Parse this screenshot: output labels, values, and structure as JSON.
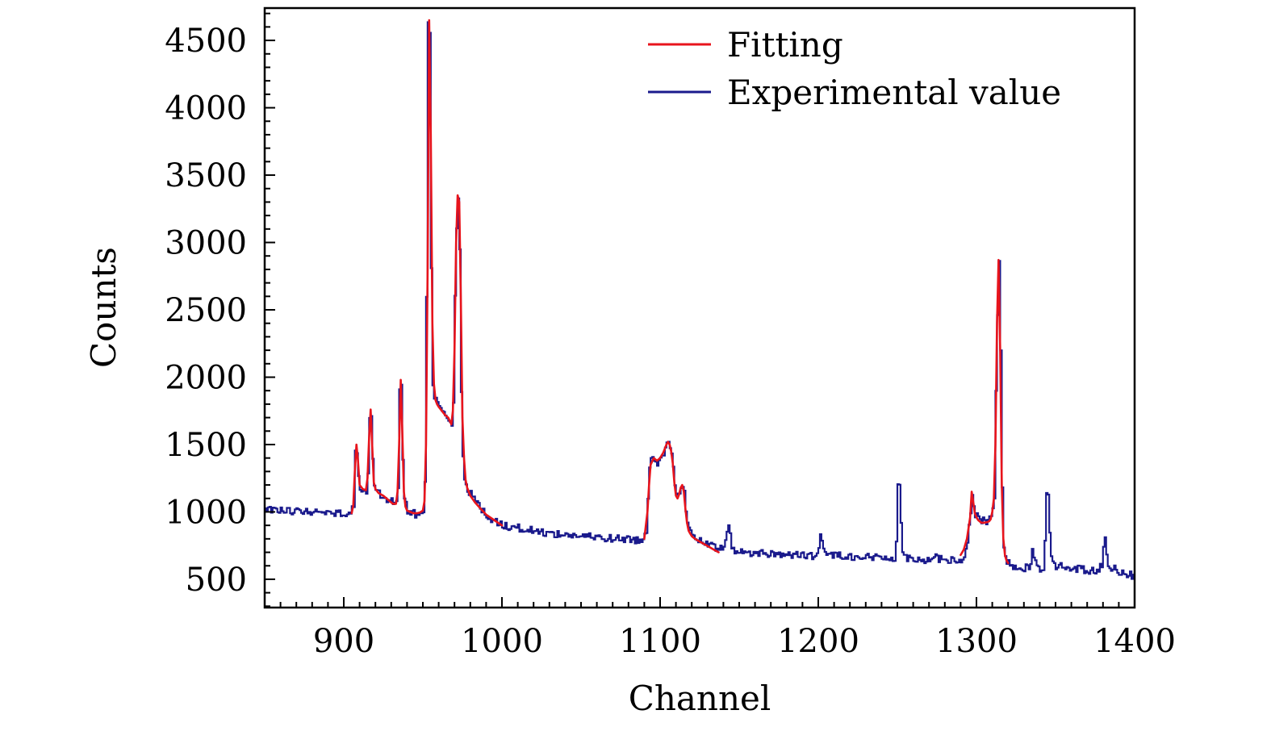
{
  "chart_data": {
    "type": "line",
    "title": "",
    "xlabel": "Channel",
    "ylabel": "Counts",
    "xlim": [
      850,
      1400
    ],
    "ylim": [
      290,
      4740
    ],
    "xticks": [
      900,
      1000,
      1100,
      1200,
      1300,
      1400
    ],
    "yticks": [
      500,
      1000,
      1500,
      2000,
      2500,
      3000,
      3500,
      4000,
      4500
    ],
    "x_minor_step": 10,
    "y_minor_step": 100,
    "legend_position": "top-right",
    "colors": {
      "fitting": "#e8141c",
      "experimental": "#1a1a8c"
    },
    "series": [
      {
        "name": "Fitting",
        "key": "fitting",
        "style": "smooth",
        "segments": [
          {
            "x": [
              905,
              906,
              907,
              908,
              909,
              910,
              912,
              914,
              915,
              916,
              917,
              918,
              919,
              920,
              922,
              925,
              928,
              931,
              933,
              934,
              935,
              936,
              937,
              938,
              939,
              940,
              942,
              944,
              946,
              948,
              950,
              951,
              952,
              953,
              954,
              955,
              956,
              957,
              958,
              959,
              960,
              962,
              964,
              966,
              968,
              969,
              970,
              971,
              972,
              973,
              974,
              975,
              976,
              977,
              978,
              980,
              983,
              986,
              990,
              995,
              1000
            ],
            "y": [
              990,
              1050,
              1300,
              1500,
              1380,
              1200,
              1170,
              1160,
              1250,
              1550,
              1760,
              1480,
              1220,
              1170,
              1140,
              1120,
              1090,
              1060,
              1060,
              1150,
              1500,
              1980,
              1600,
              1150,
              1040,
              1010,
              1000,
              990,
              990,
              995,
              1010,
              1080,
              1500,
              2800,
              4650,
              3800,
              2400,
              1950,
              1830,
              1800,
              1780,
              1750,
              1720,
              1700,
              1650,
              1750,
              2200,
              3000,
              3350,
              3300,
              2600,
              1700,
              1400,
              1240,
              1180,
              1120,
              1070,
              1030,
              980,
              940,
              900
            ]
          },
          {
            "x": [
              1090,
              1092,
              1093,
              1094,
              1096,
              1098,
              1100,
              1102,
              1103,
              1104,
              1105,
              1106,
              1107,
              1108,
              1109,
              1110,
              1111,
              1112,
              1113,
              1114,
              1115,
              1116,
              1117,
              1118,
              1119,
              1120,
              1122,
              1125,
              1128,
              1131,
              1134,
              1137
            ],
            "y": [
              800,
              1000,
              1200,
              1350,
              1400,
              1380,
              1400,
              1440,
              1470,
              1500,
              1520,
              1500,
              1450,
              1360,
              1220,
              1120,
              1100,
              1130,
              1180,
              1200,
              1150,
              1020,
              920,
              860,
              840,
              820,
              800,
              780,
              760,
              740,
              720,
              700
            ]
          },
          {
            "x": [
              1290,
              1292,
              1294,
              1296,
              1297,
              1298,
              1299,
              1300,
              1301,
              1302,
              1303,
              1305,
              1307,
              1308,
              1309,
              1310,
              1311,
              1312,
              1313,
              1314,
              1315,
              1316,
              1317,
              1318,
              1319,
              1320
            ],
            "y": [
              680,
              720,
              800,
              960,
              1150,
              1070,
              990,
              960,
              940,
              930,
              920,
              920,
              925,
              930,
              945,
              1000,
              1100,
              1500,
              2400,
              2870,
              2200,
              1200,
              800,
              680,
              640,
              620
            ]
          }
        ]
      },
      {
        "name": "Experimental value",
        "key": "experimental",
        "style": "step",
        "seed": 20240,
        "noise": 28,
        "anchors": [
          [
            850,
            1020
          ],
          [
            880,
            1000
          ],
          [
            900,
            990
          ],
          [
            904,
            990
          ],
          [
            906,
            1050
          ],
          [
            907,
            1480
          ],
          [
            908,
            1450
          ],
          [
            909,
            1250
          ],
          [
            910,
            1180
          ],
          [
            914,
            1160
          ],
          [
            915,
            1280
          ],
          [
            916,
            1700
          ],
          [
            917,
            1720
          ],
          [
            918,
            1400
          ],
          [
            919,
            1180
          ],
          [
            922,
            1140
          ],
          [
            928,
            1090
          ],
          [
            933,
            1060
          ],
          [
            934,
            1150
          ],
          [
            935,
            1900
          ],
          [
            936,
            1950
          ],
          [
            937,
            1400
          ],
          [
            938,
            1100
          ],
          [
            940,
            1010
          ],
          [
            946,
            980
          ],
          [
            950,
            1010
          ],
          [
            951,
            1200
          ],
          [
            952,
            2600
          ],
          [
            953,
            4630
          ],
          [
            954,
            4550
          ],
          [
            955,
            2800
          ],
          [
            956,
            1950
          ],
          [
            957,
            1830
          ],
          [
            958,
            1850
          ],
          [
            960,
            1790
          ],
          [
            964,
            1720
          ],
          [
            968,
            1640
          ],
          [
            969,
            1800
          ],
          [
            970,
            2600
          ],
          [
            971,
            3100
          ],
          [
            972,
            3330
          ],
          [
            973,
            2950
          ],
          [
            974,
            1900
          ],
          [
            975,
            1420
          ],
          [
            976,
            1250
          ],
          [
            978,
            1170
          ],
          [
            983,
            1080
          ],
          [
            990,
            970
          ],
          [
            1000,
            900
          ],
          [
            1030,
            840
          ],
          [
            1060,
            810
          ],
          [
            1089,
            790
          ],
          [
            1091,
            850
          ],
          [
            1092,
            1100
          ],
          [
            1093,
            1350
          ],
          [
            1094,
            1420
          ],
          [
            1096,
            1400
          ],
          [
            1098,
            1370
          ],
          [
            1100,
            1410
          ],
          [
            1102,
            1440
          ],
          [
            1104,
            1500
          ],
          [
            1105,
            1510
          ],
          [
            1106,
            1480
          ],
          [
            1107,
            1440
          ],
          [
            1108,
            1360
          ],
          [
            1109,
            1220
          ],
          [
            1110,
            1120
          ],
          [
            1111,
            1110
          ],
          [
            1112,
            1150
          ],
          [
            1113,
            1200
          ],
          [
            1114,
            1210
          ],
          [
            1115,
            1150
          ],
          [
            1116,
            1000
          ],
          [
            1117,
            900
          ],
          [
            1119,
            840
          ],
          [
            1125,
            780
          ],
          [
            1135,
            730
          ],
          [
            1140,
            720
          ],
          [
            1141,
            770
          ],
          [
            1142,
            880
          ],
          [
            1143,
            920
          ],
          [
            1144,
            820
          ],
          [
            1145,
            720
          ],
          [
            1150,
            700
          ],
          [
            1170,
            690
          ],
          [
            1198,
            670
          ],
          [
            1200,
            760
          ],
          [
            1201,
            810
          ],
          [
            1202,
            760
          ],
          [
            1204,
            690
          ],
          [
            1220,
            670
          ],
          [
            1240,
            660
          ],
          [
            1248,
            660
          ],
          [
            1249,
            780
          ],
          [
            1250,
            1200
          ],
          [
            1251,
            1210
          ],
          [
            1252,
            900
          ],
          [
            1253,
            700
          ],
          [
            1256,
            660
          ],
          [
            1270,
            640
          ],
          [
            1273,
            690
          ],
          [
            1275,
            650
          ],
          [
            1290,
            630
          ],
          [
            1292,
            680
          ],
          [
            1294,
            760
          ],
          [
            1296,
            1000
          ],
          [
            1297,
            1120
          ],
          [
            1298,
            1060
          ],
          [
            1299,
            980
          ],
          [
            1301,
            950
          ],
          [
            1303,
            920
          ],
          [
            1305,
            960
          ],
          [
            1306,
            930
          ],
          [
            1308,
            940
          ],
          [
            1310,
            1000
          ],
          [
            1311,
            1100
          ],
          [
            1312,
            1900
          ],
          [
            1313,
            2450
          ],
          [
            1314,
            2860
          ],
          [
            1315,
            2200
          ],
          [
            1316,
            1200
          ],
          [
            1317,
            760
          ],
          [
            1318,
            650
          ],
          [
            1322,
            600
          ],
          [
            1333,
            580
          ],
          [
            1335,
            700
          ],
          [
            1337,
            620
          ],
          [
            1340,
            580
          ],
          [
            1342,
            580
          ],
          [
            1343,
            800
          ],
          [
            1344,
            1150
          ],
          [
            1345,
            1130
          ],
          [
            1346,
            850
          ],
          [
            1347,
            680
          ],
          [
            1350,
            600
          ],
          [
            1375,
            560
          ],
          [
            1379,
            600
          ],
          [
            1380,
            720
          ],
          [
            1381,
            820
          ],
          [
            1382,
            700
          ],
          [
            1383,
            600
          ],
          [
            1390,
            560
          ],
          [
            1400,
            520
          ]
        ]
      }
    ]
  }
}
